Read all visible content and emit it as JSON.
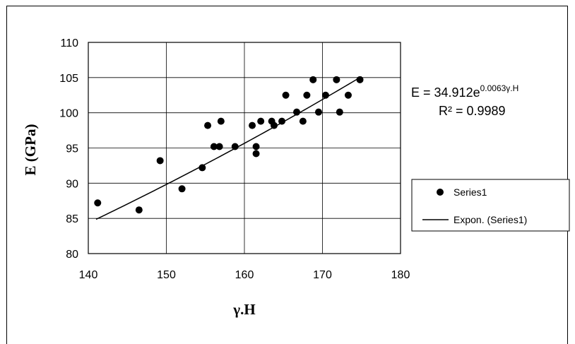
{
  "chart_data": {
    "type": "scatter",
    "title": "",
    "xlabel": "γ.H",
    "ylabel": "E (GPa)",
    "xlim": [
      140,
      180
    ],
    "ylim": [
      80,
      110
    ],
    "x_ticks": [
      "140",
      "150",
      "160",
      "170",
      "180"
    ],
    "y_ticks": [
      "80",
      "85",
      "90",
      "95",
      "100",
      "105",
      "110"
    ],
    "grid": true,
    "series": [
      {
        "name": "Series1",
        "marker": "circle",
        "color": "#000000",
        "points": [
          [
            141.2,
            87.2
          ],
          [
            146.5,
            86.2
          ],
          [
            149.2,
            93.2
          ],
          [
            152.0,
            89.2
          ],
          [
            154.6,
            92.2
          ],
          [
            155.3,
            98.2
          ],
          [
            156.1,
            95.2
          ],
          [
            156.8,
            95.2
          ],
          [
            157.0,
            98.8
          ],
          [
            158.8,
            95.2
          ],
          [
            161.0,
            98.2
          ],
          [
            161.5,
            95.2
          ],
          [
            161.5,
            94.2
          ],
          [
            162.1,
            98.8
          ],
          [
            163.5,
            98.8
          ],
          [
            163.8,
            98.2
          ],
          [
            164.8,
            98.8
          ],
          [
            165.3,
            102.5
          ],
          [
            166.7,
            100.1
          ],
          [
            167.5,
            98.8
          ],
          [
            168.0,
            102.5
          ],
          [
            168.8,
            104.7
          ],
          [
            169.5,
            100.1
          ],
          [
            170.4,
            102.5
          ],
          [
            171.8,
            104.7
          ],
          [
            172.2,
            100.1
          ],
          [
            173.3,
            102.5
          ],
          [
            174.8,
            104.7
          ]
        ]
      },
      {
        "name": "Expon. (Series1)",
        "type": "trendline",
        "model": "exponential",
        "a": 34.912,
        "b": 0.0063,
        "x_range": [
          141,
          175
        ],
        "color": "#000000"
      }
    ],
    "annotations": {
      "equation_base": "E = 34.912e",
      "equation_exponent": "0.0063γ.H",
      "r2": "R² = 0.9989"
    },
    "legend": {
      "placement": "right",
      "entries": [
        "Series1",
        "Expon. (Series1)"
      ]
    }
  }
}
